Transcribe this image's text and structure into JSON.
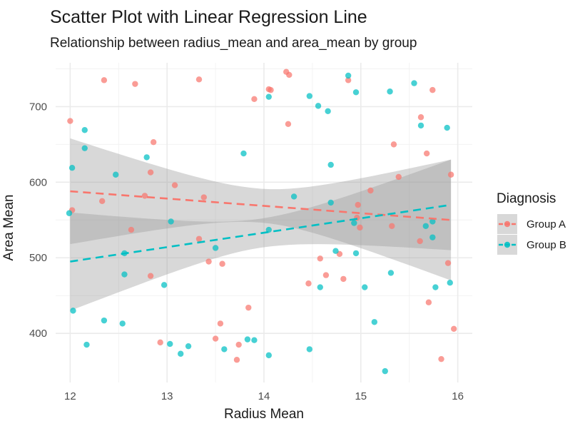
{
  "chart_data": {
    "type": "scatter",
    "title": "Scatter Plot with Linear Regression Line",
    "subtitle": "Relationship between radius_mean and area_mean by group",
    "xlabel": "Radius Mean",
    "ylabel": "Area Mean",
    "xlim": [
      11.85,
      16.15
    ],
    "ylim": [
      335,
      758
    ],
    "xticks": [
      12,
      13,
      14,
      15,
      16
    ],
    "yticks": [
      400,
      500,
      600,
      700
    ],
    "grid": true,
    "legend": {
      "title": "Diagnosis",
      "position": "right"
    },
    "series": [
      {
        "name": "Group A",
        "color": "#F8766D",
        "points": [
          [
            12.0,
            681
          ],
          [
            12.02,
            563
          ],
          [
            12.35,
            735
          ],
          [
            12.33,
            575
          ],
          [
            12.67,
            730
          ],
          [
            12.63,
            537
          ],
          [
            12.77,
            582
          ],
          [
            12.83,
            613
          ],
          [
            12.86,
            653
          ],
          [
            12.83,
            476
          ],
          [
            12.93,
            388
          ],
          [
            13.08,
            596
          ],
          [
            13.33,
            736
          ],
          [
            13.33,
            525
          ],
          [
            13.38,
            580
          ],
          [
            13.43,
            495
          ],
          [
            13.5,
            393
          ],
          [
            13.55,
            413
          ],
          [
            13.57,
            492
          ],
          [
            13.72,
            365
          ],
          [
            13.74,
            385
          ],
          [
            13.84,
            434
          ],
          [
            13.9,
            710
          ],
          [
            14.05,
            723
          ],
          [
            14.07,
            722
          ],
          [
            14.23,
            746
          ],
          [
            14.26,
            742
          ],
          [
            14.25,
            677
          ],
          [
            14.46,
            466
          ],
          [
            14.58,
            499
          ],
          [
            14.64,
            477
          ],
          [
            14.78,
            505
          ],
          [
            14.82,
            472
          ],
          [
            14.87,
            735
          ],
          [
            14.96,
            553
          ],
          [
            14.97,
            570
          ],
          [
            14.99,
            540
          ],
          [
            15.1,
            589
          ],
          [
            15.32,
            542
          ],
          [
            15.34,
            650
          ],
          [
            15.39,
            607
          ],
          [
            15.61,
            522
          ],
          [
            15.62,
            686
          ],
          [
            15.68,
            638
          ],
          [
            15.7,
            441
          ],
          [
            15.74,
            722
          ],
          [
            15.83,
            366
          ],
          [
            15.9,
            493
          ],
          [
            15.93,
            610
          ],
          [
            15.96,
            406
          ]
        ],
        "regression": {
          "x": [
            12,
            15.93
          ],
          "y": [
            588,
            550
          ],
          "ci_at_ends": [
            [
              518,
              658
            ],
            [
              470,
              630
            ]
          ]
        }
      },
      {
        "name": "Group B",
        "color": "#00BFC4",
        "points": [
          [
            11.99,
            559
          ],
          [
            12.02,
            619
          ],
          [
            12.03,
            430
          ],
          [
            12.15,
            669
          ],
          [
            12.15,
            645
          ],
          [
            12.17,
            385
          ],
          [
            12.35,
            417
          ],
          [
            12.47,
            610
          ],
          [
            12.54,
            413
          ],
          [
            12.56,
            506
          ],
          [
            12.56,
            478
          ],
          [
            12.79,
            633
          ],
          [
            12.97,
            464
          ],
          [
            13.03,
            386
          ],
          [
            13.04,
            548
          ],
          [
            13.14,
            373
          ],
          [
            13.22,
            383
          ],
          [
            13.5,
            513
          ],
          [
            13.59,
            379
          ],
          [
            13.79,
            638
          ],
          [
            13.83,
            392
          ],
          [
            13.9,
            391
          ],
          [
            14.05,
            713
          ],
          [
            14.05,
            537
          ],
          [
            14.05,
            371
          ],
          [
            14.31,
            581
          ],
          [
            14.47,
            714
          ],
          [
            14.47,
            379
          ],
          [
            14.56,
            701
          ],
          [
            14.58,
            461
          ],
          [
            14.66,
            694
          ],
          [
            14.69,
            623
          ],
          [
            14.69,
            573
          ],
          [
            14.74,
            509
          ],
          [
            14.87,
            741
          ],
          [
            14.93,
            546
          ],
          [
            14.95,
            719
          ],
          [
            14.95,
            506
          ],
          [
            15.04,
            461
          ],
          [
            15.14,
            415
          ],
          [
            15.25,
            350
          ],
          [
            15.3,
            720
          ],
          [
            15.31,
            480
          ],
          [
            15.55,
            731
          ],
          [
            15.62,
            675
          ],
          [
            15.67,
            542
          ],
          [
            15.74,
            548
          ],
          [
            15.74,
            527
          ],
          [
            15.77,
            461
          ],
          [
            15.89,
            672
          ],
          [
            15.92,
            467
          ]
        ],
        "regression": {
          "x": [
            12,
            15.93
          ],
          "y": [
            495,
            570
          ],
          "ci_at_ends": [
            [
              430,
              560
            ],
            [
              510,
              630
            ]
          ]
        }
      }
    ]
  }
}
